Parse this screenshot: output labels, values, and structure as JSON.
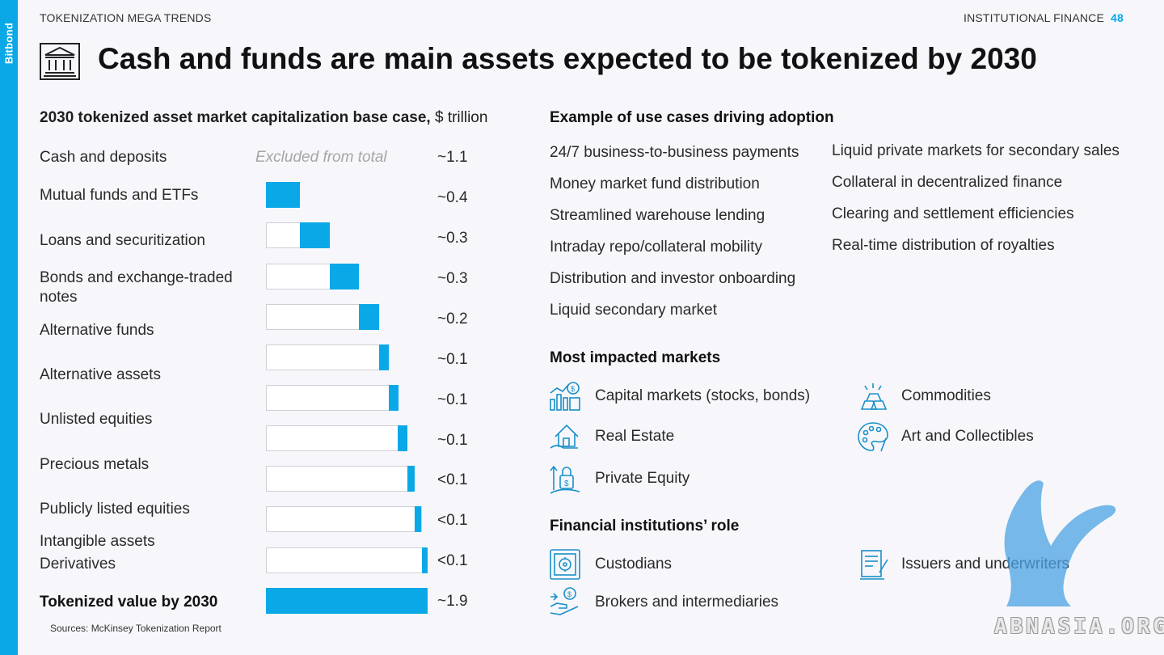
{
  "brand": "Bitbond",
  "header": {
    "section": "TOKENIZATION MEGA TRENDS",
    "chapter": "INSTITUTIONAL FINANCE",
    "page": "48"
  },
  "title": "Cash and funds are main assets expected to be tokenized by 2030",
  "chart_data": {
    "type": "bar",
    "title_bold": "2030 tokenized asset market capitalization base case,",
    "title_unit": "$ trillion",
    "excluded_note": "Excluded from total",
    "rows": [
      {
        "label": "Cash and deposits",
        "value_text": "~1.1",
        "offset": 0,
        "value": 0,
        "excluded": true
      },
      {
        "label": "Mutual funds and ETFs",
        "value_text": "~0.4",
        "offset": 0,
        "value": 0.4
      },
      {
        "label": "Loans and securitization",
        "value_text": "~0.3",
        "offset": 0.4,
        "value": 0.35
      },
      {
        "label": "Bonds and exchange-traded notes",
        "value_text": "~0.3",
        "offset": 0.75,
        "value": 0.34
      },
      {
        "label": "Alternative funds",
        "value_text": "~0.2",
        "offset": 1.09,
        "value": 0.24
      },
      {
        "label": "Alternative assets",
        "value_text": "~0.1",
        "offset": 1.33,
        "value": 0.11
      },
      {
        "label": "Unlisted equities",
        "value_text": "~0.1",
        "offset": 1.44,
        "value": 0.11
      },
      {
        "label": "Precious metals",
        "value_text": "~0.1",
        "offset": 1.55,
        "value": 0.11
      },
      {
        "label": "Publicly listed equities",
        "value_text": "<0.1",
        "offset": 1.66,
        "value": 0.09
      },
      {
        "label": "Intangible assets",
        "value_text": "<0.1",
        "offset": 1.75,
        "value": 0.08
      },
      {
        "label": "Derivatives",
        "value_text": "<0.1",
        "offset": 1.83,
        "value": 0.07
      }
    ],
    "total": {
      "label": "Tokenized value by 2030",
      "value_text": "~1.9",
      "value": 1.9
    }
  },
  "sources": "Sources: McKinsey Tokenization Report",
  "use_cases": {
    "title": "Example of use cases driving adoption",
    "left": [
      "24/7 business-to-business payments",
      "Money market fund distribution",
      "Streamlined warehouse lending",
      "Intraday repo/collateral mobility",
      "Distribution and investor onboarding",
      "Liquid secondary market"
    ],
    "right": [
      "Liquid private markets for secondary sales",
      "Collateral in decentralized finance",
      "Clearing and settlement efficiencies",
      "Real-time distribution of royalties"
    ]
  },
  "markets": {
    "title": "Most impacted markets",
    "items": [
      {
        "label": "Capital markets (stocks, bonds)",
        "icon": "capital-markets-icon"
      },
      {
        "label": "Commodities",
        "icon": "gold-bars-icon"
      },
      {
        "label": "Real Estate",
        "icon": "house-icon"
      },
      {
        "label": "Art and Collectibles",
        "icon": "palette-icon"
      },
      {
        "label": "Private Equity",
        "icon": "private-equity-icon"
      }
    ]
  },
  "institutions": {
    "title": "Financial institutions’ role",
    "items": [
      {
        "label": "Custodians",
        "icon": "safe-icon"
      },
      {
        "label": "Issuers and underwriters",
        "icon": "document-icon"
      },
      {
        "label": "Brokers and intermediaries",
        "icon": "hand-coin-icon"
      }
    ]
  },
  "watermark": "ABNASIA.ORG",
  "colors": {
    "accent": "#0aa8e6",
    "background": "#f7f7fb"
  }
}
